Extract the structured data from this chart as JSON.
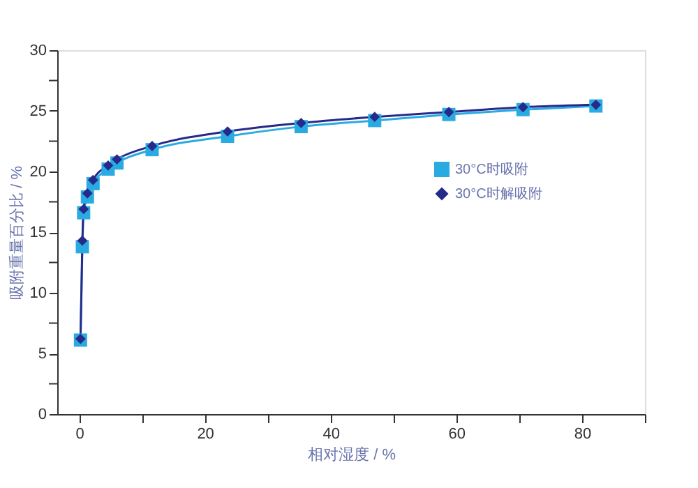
{
  "chart_data": {
    "type": "line",
    "xlabel": "相对湿度 / %",
    "ylabel": "吸附重量百分比 / %",
    "x": [
      0.2,
      0.5,
      0.7,
      1.3,
      2.2,
      4.6,
      6.0,
      11.6,
      23.6,
      35.3,
      47.0,
      58.8,
      70.6,
      82.2
    ],
    "series": [
      {
        "name": "30°C时吸附",
        "color": "#29abe2",
        "marker": "square",
        "values": [
          6.1,
          13.8,
          16.6,
          17.9,
          19.0,
          20.2,
          20.7,
          21.8,
          22.9,
          23.7,
          24.2,
          24.7,
          25.1,
          25.4
        ]
      },
      {
        "name": "30°C时解吸附",
        "color": "#262a8a",
        "marker": "diamond",
        "values": [
          6.2,
          14.3,
          16.9,
          18.2,
          19.3,
          20.5,
          21.0,
          22.1,
          23.3,
          24.0,
          24.5,
          24.9,
          25.3,
          25.5
        ]
      }
    ],
    "xlim": [
      -3.5,
      90
    ],
    "xticks": [
      0,
      {
        "value": 10,
        "label": null
      },
      20,
      {
        "value": 30,
        "label": null
      },
      40,
      {
        "value": 50,
        "label": null
      },
      60,
      {
        "value": 70,
        "label": null
      },
      80,
      {
        "value": 90,
        "label": null
      }
    ],
    "ylim": [
      0,
      30
    ],
    "yticks": [
      0,
      {
        "value": 2.5,
        "label": null
      },
      5,
      {
        "value": 7.5,
        "label": null
      },
      10,
      {
        "value": 12.5,
        "label": null
      },
      15,
      {
        "value": 17.5,
        "label": null
      },
      20,
      {
        "value": 22.5,
        "label": null
      },
      25,
      {
        "value": 27.5,
        "label": null
      },
      30
    ],
    "grid": false,
    "legend": "right",
    "line_style": "solid"
  }
}
